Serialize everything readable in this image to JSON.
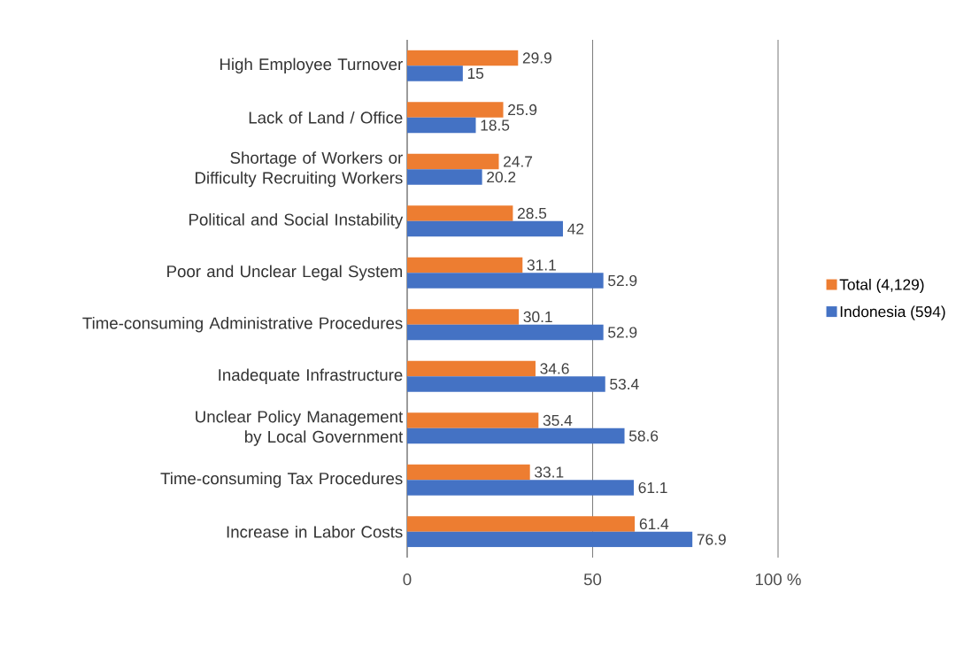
{
  "chart_data": {
    "type": "bar",
    "orientation": "horizontal",
    "categories": [
      "High Employee Turnover",
      "Lack of Land / Office",
      "Shortage of Workers or Difficulty Recruiting Workers",
      "Political and Social Instability",
      "Poor and Unclear Legal System",
      "Time-consuming Administrative Procedures",
      "Inadequate Infrastructure",
      "Unclear Policy Management by Local Government",
      "Time-consuming Tax Procedures",
      "Increase in Labor Costs"
    ],
    "series": [
      {
        "name": "Total (4,129)",
        "color": "#ed7d31",
        "values": [
          29.9,
          25.9,
          24.7,
          28.5,
          31.1,
          30.1,
          34.6,
          35.4,
          33.1,
          61.4
        ]
      },
      {
        "name": "Indonesia (594)",
        "color": "#4472c4",
        "values": [
          15,
          18.5,
          20.2,
          42,
          52.9,
          52.9,
          53.4,
          58.6,
          61.1,
          76.9
        ]
      }
    ],
    "xlim": [
      0,
      100
    ],
    "xticks": [
      0,
      50,
      {
        "value": 100,
        "label": "100 %"
      }
    ],
    "grid": "x",
    "legend": "right",
    "data_labels": true
  }
}
